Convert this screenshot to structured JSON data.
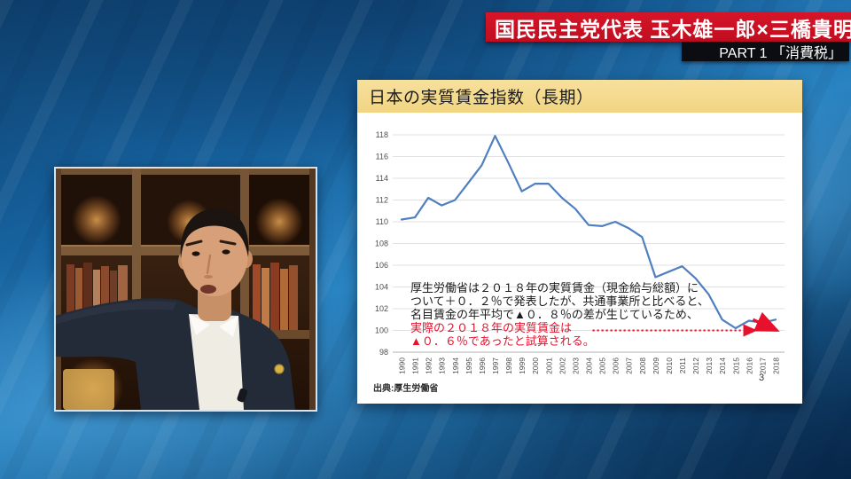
{
  "program": {
    "title": "国民民主党代表 玉木雄一郎×三橋貴明",
    "part": "PART 1 「消費税」"
  },
  "slide": {
    "title": "日本の実質賃金指数（長期）",
    "source": "出典:厚生労働省",
    "page_number": "3"
  },
  "photo": {
    "subject": "speaker-in-dark-suit-in-front-of-bookshelf"
  },
  "colors": {
    "banner_red": "#cd1225",
    "banner_dark": "#0c0d12",
    "slide_header_yellow": "#f4da8d",
    "chart_line_blue": "#4f7fbe",
    "annotation_red": "#e8112d",
    "background_blue": "#1a6aa6"
  },
  "chart_data": {
    "type": "line",
    "title": "日本の実質賃金指数（長期）",
    "x": [
      1990,
      1991,
      1992,
      1993,
      1994,
      1995,
      1996,
      1997,
      1998,
      1999,
      2000,
      2001,
      2002,
      2003,
      2004,
      2005,
      2006,
      2007,
      2008,
      2009,
      2010,
      2011,
      2012,
      2013,
      2014,
      2015,
      2016,
      2017,
      2018
    ],
    "values": [
      110.2,
      110.4,
      112.2,
      111.5,
      112.0,
      113.6,
      115.2,
      117.9,
      115.4,
      112.8,
      113.5,
      113.5,
      112.2,
      111.2,
      109.7,
      109.6,
      110.0,
      109.4,
      108.6,
      104.9,
      105.4,
      105.9,
      104.8,
      103.3,
      101.0,
      100.2,
      100.9,
      100.7,
      101.0
    ],
    "ylim": [
      98,
      118
    ],
    "ytick_step": 2,
    "grid": true,
    "legend": "none",
    "line_color": "#4f7fbe",
    "annotation_black_lines": [
      "厚生労働省は２０１８年の実質賃金（現金給与総額）に",
      "ついて＋０．２％で発表したが、共通事業所と比べると、",
      "名目賃金の年平均で▲０．８％の差が生じているため、"
    ],
    "annotation_red_lines": [
      "実際の２０１８年の実質賃金は",
      "▲０．６％であったと試算される。"
    ],
    "red_dotted_reference": {
      "value": 100.0,
      "from_year": 2004.3,
      "to_year": 2016.5,
      "arrow": "right"
    },
    "red_revision_arrow": {
      "from": {
        "year": 2016.3,
        "value": 101.0
      },
      "to": {
        "year": 2018.1,
        "value": 100.0
      }
    }
  }
}
